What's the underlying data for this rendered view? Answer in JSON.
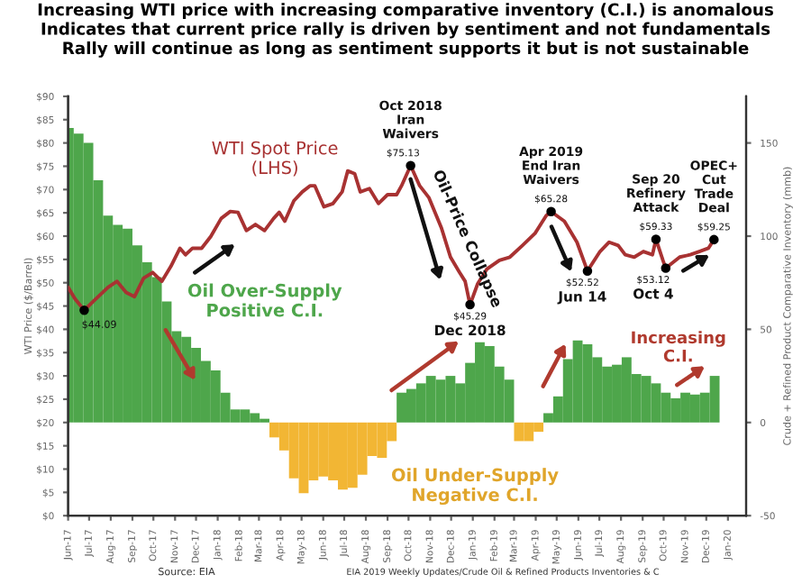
{
  "chart_data": {
    "type": "line",
    "title": "Increasing WTI price with increasing comparative inventory (C.I.) is anomalous\nIndicates that current price rally is driven by sentiment and not fundamentals\nRally will continue as long as sentiment supports it but is not sustainable",
    "ylabel": "WTI Price ($/Barrel)",
    "y2label": "Crude + Refined Product Comparative Inventory (mmb)",
    "series": [
      {
        "name": "WTI Spot Price\n(LHS)",
        "color": "#a83232",
        "x": [
          "2017-06-01",
          "2017-06-11",
          "2017-06-24",
          "2017-07-07",
          "2017-07-28",
          "2017-08-10",
          "2017-08-23",
          "2017-09-04",
          "2017-09-17",
          "2017-09-30",
          "2017-10-13",
          "2017-10-26",
          "2017-11-08",
          "2017-11-16",
          "2017-11-26",
          "2017-12-09",
          "2017-12-22",
          "2018-01-06",
          "2018-01-19",
          "2018-01-30",
          "2018-02-11",
          "2018-02-24",
          "2018-03-09",
          "2018-03-22",
          "2018-03-30",
          "2018-04-07",
          "2018-04-20",
          "2018-05-02",
          "2018-05-13",
          "2018-05-20",
          "2018-06-02",
          "2018-06-15",
          "2018-06-28",
          "2018-07-06",
          "2018-07-16",
          "2018-07-24",
          "2018-08-06",
          "2018-08-19",
          "2018-09-01",
          "2018-09-14",
          "2018-09-21",
          "2018-10-04",
          "2018-10-17",
          "2018-10-30",
          "2018-11-17",
          "2018-11-30",
          "2018-12-13",
          "2018-12-21",
          "2018-12-28",
          "2019-01-08",
          "2019-01-21",
          "2019-02-08",
          "2019-02-23",
          "2019-03-13",
          "2019-03-31",
          "2019-04-16",
          "2019-04-23",
          "2019-05-12",
          "2019-05-30",
          "2019-06-14",
          "2019-07-02",
          "2019-07-15",
          "2019-07-28",
          "2019-08-07",
          "2019-08-20",
          "2019-09-02",
          "2019-09-15",
          "2019-09-20",
          "2019-09-30",
          "2019-10-04",
          "2019-10-24",
          "2019-11-08",
          "2019-11-21",
          "2019-12-04",
          "2019-12-12"
        ],
        "values": [
          49.0,
          46.5,
          44.09,
          46,
          49,
          50.3,
          47.9,
          47,
          51,
          52.2,
          50.3,
          53.5,
          57.4,
          56,
          57.4,
          57.4,
          59.9,
          63.8,
          65.3,
          65.1,
          61.2,
          62.5,
          61.2,
          63.8,
          65.1,
          63.2,
          67.6,
          69.5,
          70.8,
          70.8,
          66.3,
          67,
          69.5,
          74,
          73.4,
          69.5,
          70.2,
          67,
          68.9,
          68.9,
          70.8,
          75.13,
          70.8,
          68.3,
          61.8,
          55.5,
          52.2,
          50.3,
          45.29,
          49.8,
          52.9,
          54.8,
          55.5,
          58,
          60.6,
          64.4,
          65.28,
          63.2,
          58.7,
          52.52,
          56.7,
          58.7,
          58,
          56,
          55.5,
          56.7,
          56,
          59.33,
          54.8,
          53.12,
          55.5,
          56,
          56.7,
          57.4,
          59.25
        ]
      },
      {
        "type": "bar",
        "axis": "y2",
        "x": [
          "2017-06-02",
          "2017-06-16",
          "2017-06-30",
          "2017-07-14",
          "2017-07-28",
          "2017-08-11",
          "2017-08-25",
          "2017-09-08",
          "2017-09-22",
          "2017-10-06",
          "2017-10-20",
          "2017-11-03",
          "2017-11-17",
          "2017-12-01",
          "2017-12-15",
          "2017-12-29",
          "2018-01-12",
          "2018-01-26",
          "2018-02-09",
          "2018-02-23",
          "2018-03-09",
          "2018-03-23",
          "2018-04-06",
          "2018-04-20",
          "2018-05-04",
          "2018-05-18",
          "2018-06-01",
          "2018-06-15",
          "2018-06-29",
          "2018-07-13",
          "2018-07-27",
          "2018-08-10",
          "2018-08-24",
          "2018-09-07",
          "2018-09-21",
          "2018-10-05",
          "2018-10-19",
          "2018-11-02",
          "2018-11-16",
          "2018-11-30",
          "2018-12-14",
          "2018-12-28",
          "2019-01-11",
          "2019-01-25",
          "2019-02-08",
          "2019-02-22",
          "2019-03-08",
          "2019-03-22",
          "2019-04-05",
          "2019-04-19",
          "2019-05-03",
          "2019-05-17",
          "2019-05-31",
          "2019-06-14",
          "2019-06-28",
          "2019-07-12",
          "2019-07-26",
          "2019-08-09",
          "2019-08-23",
          "2019-09-06",
          "2019-09-20",
          "2019-10-04",
          "2019-10-18",
          "2019-11-01",
          "2019-11-15",
          "2019-11-29",
          "2019-12-13"
        ],
        "values": [
          158,
          155,
          150,
          130,
          111,
          106,
          104,
          95,
          86,
          78,
          65,
          49,
          46,
          40,
          33,
          28,
          16,
          7,
          7,
          5,
          2,
          -8,
          -15,
          -30,
          -38,
          -31,
          -29,
          -31,
          -36,
          -35,
          -28,
          -18,
          -19,
          -10,
          16,
          18,
          21,
          25,
          23,
          25,
          21,
          32,
          43,
          41,
          30,
          23,
          -10,
          -10,
          -5,
          5,
          14,
          34,
          44,
          42,
          35,
          30,
          31,
          35,
          26,
          25,
          21,
          16,
          13,
          16,
          15,
          16,
          25
        ],
        "colors": [
          "#4ea64b",
          "#4ea64b",
          "#4ea64b",
          "#4ea64b",
          "#4ea64b",
          "#4ea64b",
          "#4ea64b",
          "#4ea64b",
          "#4ea64b",
          "#4ea64b",
          "#4ea64b",
          "#4ea64b",
          "#4ea64b",
          "#4ea64b",
          "#4ea64b",
          "#4ea64b",
          "#4ea64b",
          "#4ea64b",
          "#4ea64b",
          "#4ea64b",
          "#4ea64b",
          "#f2b634",
          "#f2b634",
          "#f2b634",
          "#f2b634",
          "#f2b634",
          "#f2b634",
          "#f2b634",
          "#f2b634",
          "#f2b634",
          "#f2b634",
          "#f2b634",
          "#f2b634",
          "#f2b634",
          "#4ea64b",
          "#4ea64b",
          "#4ea64b",
          "#4ea64b",
          "#4ea64b",
          "#4ea64b",
          "#4ea64b",
          "#4ea64b",
          "#4ea64b",
          "#4ea64b",
          "#4ea64b",
          "#4ea64b",
          "#f2b634",
          "#f2b634",
          "#f2b634",
          "#4ea64b",
          "#4ea64b",
          "#4ea64b",
          "#4ea64b",
          "#4ea64b",
          "#4ea64b",
          "#4ea64b",
          "#4ea64b",
          "#4ea64b",
          "#4ea64b",
          "#4ea64b",
          "#4ea64b",
          "#4ea64b",
          "#4ea64b",
          "#4ea64b",
          "#4ea64b",
          "#4ea64b",
          "#4ea64b"
        ]
      }
    ],
    "xlim": [
      "2017-06-01",
      "2020-01-27"
    ],
    "xticks": [
      {
        "value": "2017-06-01",
        "label": "Jun-17"
      },
      {
        "value": "2017-07-01",
        "label": "Jul-17"
      },
      {
        "value": "2017-08-01",
        "label": "Aug-17"
      },
      {
        "value": "2017-09-01",
        "label": "Sep-17"
      },
      {
        "value": "2017-10-01",
        "label": "Oct-17"
      },
      {
        "value": "2017-11-01",
        "label": "Nov-17"
      },
      {
        "value": "2017-12-01",
        "label": "Dec-17"
      },
      {
        "value": "2018-01-01",
        "label": "Jan-18"
      },
      {
        "value": "2018-02-01",
        "label": "Feb-18"
      },
      {
        "value": "2018-03-01",
        "label": "Mar-18"
      },
      {
        "value": "2018-04-01",
        "label": "Apr-18"
      },
      {
        "value": "2018-05-01",
        "label": "May-18"
      },
      {
        "value": "2018-06-01",
        "label": "Jun-18"
      },
      {
        "value": "2018-07-01",
        "label": "Jul-18"
      },
      {
        "value": "2018-08-01",
        "label": "Aug-18"
      },
      {
        "value": "2018-09-01",
        "label": "Sep-18"
      },
      {
        "value": "2018-10-01",
        "label": "Oct-18"
      },
      {
        "value": "2018-11-01",
        "label": "Nov-18"
      },
      {
        "value": "2018-12-01",
        "label": "Dec-18"
      },
      {
        "value": "2019-01-01",
        "label": "Jan-19"
      },
      {
        "value": "2019-02-01",
        "label": "Feb-19"
      },
      {
        "value": "2019-03-01",
        "label": "Mar-19"
      },
      {
        "value": "2019-04-01",
        "label": "Apr-19"
      },
      {
        "value": "2019-05-01",
        "label": "May-19"
      },
      {
        "value": "2019-06-01",
        "label": "Jun-19"
      },
      {
        "value": "2019-07-01",
        "label": "Jul-19"
      },
      {
        "value": "2019-08-01",
        "label": "Aug-19"
      },
      {
        "value": "2019-09-01",
        "label": "Sep-19"
      },
      {
        "value": "2019-10-01",
        "label": "Oct-19"
      },
      {
        "value": "2019-11-01",
        "label": "Nov-19"
      },
      {
        "value": "2019-12-01",
        "label": "Dec-19"
      },
      {
        "value": "2020-01-01",
        "label": "Jan-20"
      }
    ],
    "ylim": [
      0,
      90
    ],
    "yticks": [
      {
        "value": 0,
        "label": "$0"
      },
      {
        "value": 5,
        "label": "$5"
      },
      {
        "value": 10,
        "label": "$10"
      },
      {
        "value": 15,
        "label": "$15"
      },
      {
        "value": 20,
        "label": "$20"
      },
      {
        "value": 25,
        "label": "$25"
      },
      {
        "value": 30,
        "label": "$30"
      },
      {
        "value": 35,
        "label": "$35"
      },
      {
        "value": 40,
        "label": "$40"
      },
      {
        "value": 45,
        "label": "$45"
      },
      {
        "value": 50,
        "label": "$50"
      },
      {
        "value": 55,
        "label": "$55"
      },
      {
        "value": 60,
        "label": "$60"
      },
      {
        "value": 65,
        "label": "$65"
      },
      {
        "value": 70,
        "label": "$70"
      },
      {
        "value": 75,
        "label": "$75"
      },
      {
        "value": 80,
        "label": "$80"
      },
      {
        "value": 85,
        "label": "$85"
      },
      {
        "value": 90,
        "label": "$90"
      }
    ],
    "y2lim": [
      -50,
      175
    ],
    "y2ticks": [
      -50,
      0,
      50,
      100,
      150
    ],
    "grid": false,
    "legend": false,
    "annotations": [
      {
        "text": "$44.09",
        "x": "2017-06-24",
        "y": 44.09
      },
      {
        "text": "Oct 2018\nIran\nWaivers",
        "x": "2018-10-04",
        "y": 75.13
      },
      {
        "text": "$75.13",
        "x": "2018-10-04",
        "y": 75.13
      },
      "Oil-Price Collapse",
      {
        "text": "$45.29",
        "x": "2018-12-28",
        "y": 45.29
      },
      {
        "text": "Dec 2018",
        "x": "2018-12-28",
        "y": 45.29
      },
      {
        "text": "Apr 2019\nEnd Iran\nWaivers",
        "x": "2019-04-23",
        "y": 65.28
      },
      {
        "text": "$65.28",
        "x": "2019-04-23",
        "y": 65.28
      },
      {
        "text": "$52.52",
        "x": "2019-06-14",
        "y": 52.52
      },
      {
        "text": "Jun 14",
        "x": "2019-06-14",
        "y": 52.52
      },
      {
        "text": "Sep 20\nRefinery\nAttack",
        "x": "2019-09-20",
        "y": 59.33
      },
      {
        "text": "$59.33",
        "x": "2019-09-20",
        "y": 59.33
      },
      {
        "text": "$53.12",
        "x": "2019-10-04",
        "y": 53.12
      },
      {
        "text": "Oct 4",
        "x": "2019-10-04",
        "y": 53.12
      },
      {
        "text": "OPEC+\nCut\nTrade\nDeal",
        "x": "2019-12-12",
        "y": 59.25
      },
      {
        "text": "$59.25",
        "x": "2019-12-12",
        "y": 59.25
      },
      "Oil Over-Supply\nPositive C.I.",
      "Oil Under-Supply\nNegative C.I.",
      "Increasing\nC.I.",
      "Source: EIA",
      "EIA 2019 Weekly Updates/Crude Oil & Refined Products Inventories & C"
    ]
  }
}
